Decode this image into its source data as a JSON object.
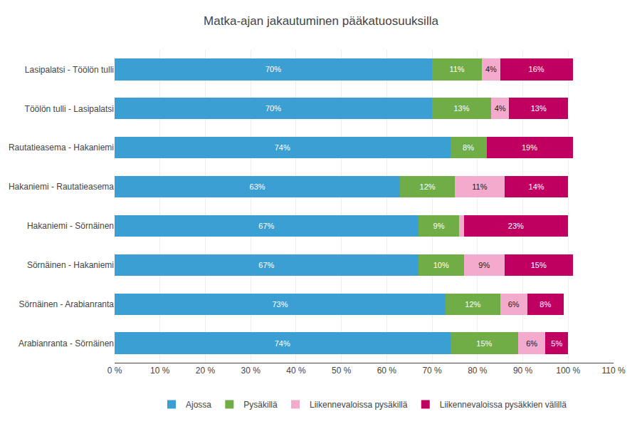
{
  "chart_data": {
    "type": "bar",
    "orientation": "horizontal",
    "stacked": true,
    "title": "Matka-ajan jakautuminen pääkatuosuuksilla",
    "categories": [
      "Lasipalatsi - Töölön tulli",
      "Töölön tulli - Lasipalatsi",
      "Rautatieasema - Hakaniemi",
      "Hakaniemi - Rautatieasema",
      "Hakaniemi - Sörnäinen",
      "Sörnäinen - Hakaniemi",
      "Sörnäinen - Arabianranta",
      "Arabianranta - Sörnäinen"
    ],
    "series": [
      {
        "name": "Ajossa",
        "color": "#3B9FD4",
        "values": [
          70,
          70,
          74,
          63,
          67,
          67,
          73,
          74
        ],
        "value_labels": [
          "70%",
          "70%",
          "74%",
          "63%",
          "67%",
          "67%",
          "73%",
          "74%"
        ]
      },
      {
        "name": "Pysäkillä",
        "color": "#70AD47",
        "values": [
          11,
          13,
          8,
          12,
          9,
          10,
          12,
          15
        ],
        "value_labels": [
          "11%",
          "13%",
          "8%",
          "12%",
          "9%",
          "10%",
          "12%",
          "15%"
        ]
      },
      {
        "name": "Liikennevaloissa pysäkillä",
        "color": "#F4AACC",
        "values": [
          4,
          4,
          0,
          11,
          1,
          9,
          6,
          6
        ],
        "value_labels": [
          "4%",
          "4%",
          null,
          "11%",
          null,
          "9%",
          "6%",
          "6%"
        ]
      },
      {
        "name": "Liikennevaloissa pysäkkien välillä",
        "color": "#C00060",
        "values": [
          16,
          13,
          19,
          14,
          23,
          15,
          8,
          5
        ],
        "value_labels": [
          "16%",
          "13%",
          "19%",
          "14%",
          "23%",
          "15%",
          "8%",
          "5%"
        ]
      }
    ],
    "xlim": [
      0,
      110
    ],
    "xticks": [
      {
        "value": 0,
        "label": "0 %"
      },
      {
        "value": 10,
        "label": "10 %"
      },
      {
        "value": 20,
        "label": "20 %"
      },
      {
        "value": 30,
        "label": "30 %"
      },
      {
        "value": 40,
        "label": "40 %"
      },
      {
        "value": 50,
        "label": "50 %"
      },
      {
        "value": 60,
        "label": "60 %"
      },
      {
        "value": 70,
        "label": "70 %"
      },
      {
        "value": 80,
        "label": "80 %"
      },
      {
        "value": 90,
        "label": "90 %"
      },
      {
        "value": 100,
        "label": "100 %"
      },
      {
        "value": 110,
        "label": "110 %"
      }
    ],
    "grid": "x",
    "data_labels": true,
    "legend": "bottom"
  }
}
